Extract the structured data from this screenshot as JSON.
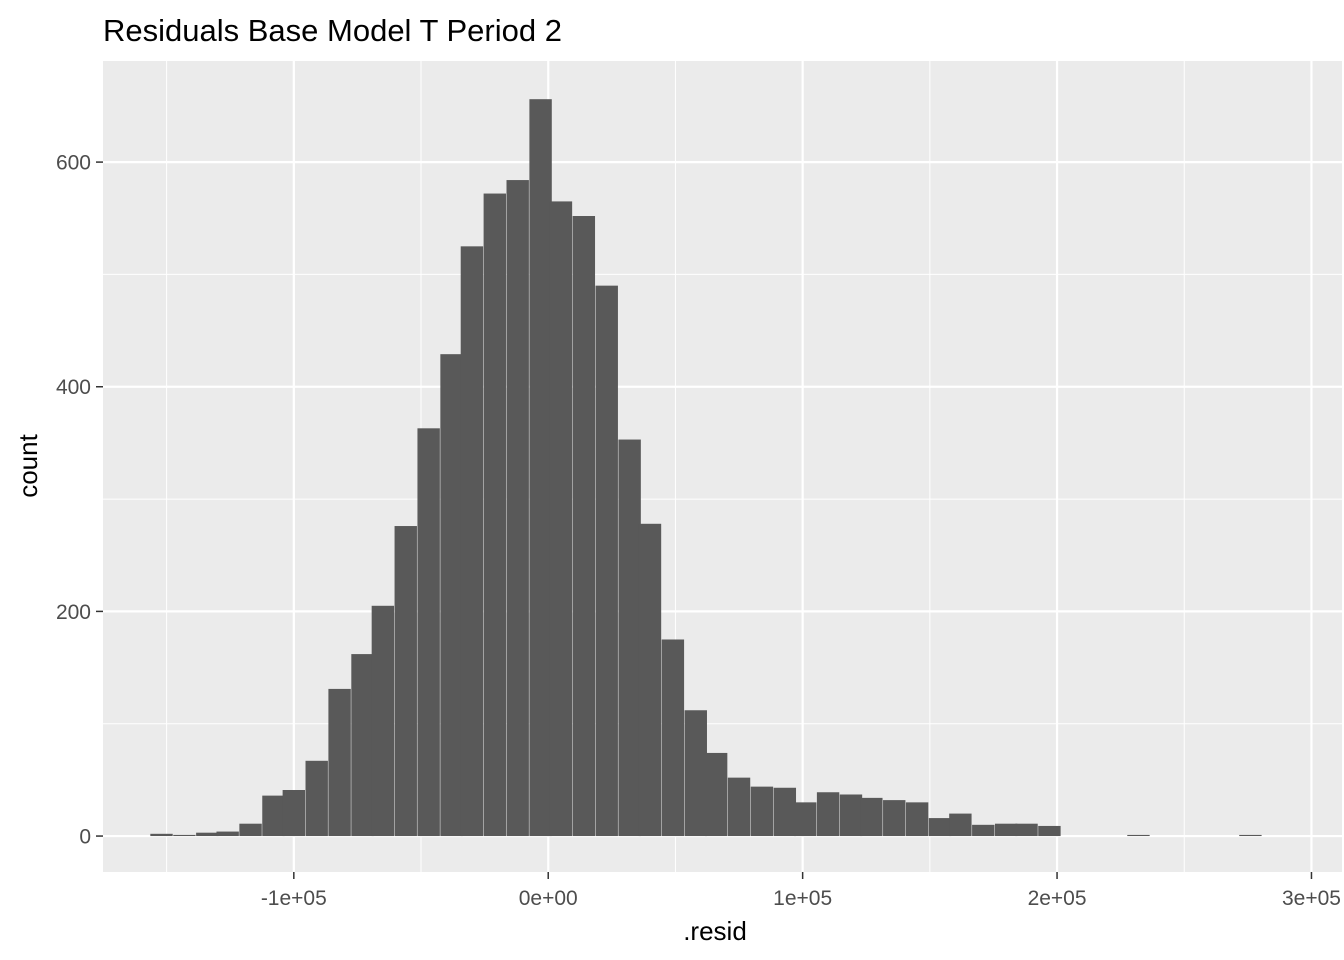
{
  "chart_data": {
    "type": "bar",
    "title": "Residuals Base Model T Period 2",
    "xlabel": ".resid",
    "ylabel": "count",
    "xlim": [
      -175000,
      312000
    ],
    "ylim": [
      -32,
      690
    ],
    "grid": true,
    "legend": "none",
    "bin_width": 8800,
    "x_ticks": [
      {
        "value": -100000,
        "label": "-1e+05"
      },
      {
        "value": 0,
        "label": "0e+00"
      },
      {
        "value": 100000,
        "label": "1e+05"
      },
      {
        "value": 200000,
        "label": "2e+05"
      },
      {
        "value": 300000,
        "label": "3e+05"
      }
    ],
    "y_ticks": [
      {
        "value": 0,
        "label": "0"
      },
      {
        "value": 200,
        "label": "200"
      },
      {
        "value": 400,
        "label": "400"
      },
      {
        "value": 600,
        "label": "600"
      }
    ],
    "bins": [
      {
        "x": -152000,
        "count": 2
      },
      {
        "x": -143000,
        "count": 1
      },
      {
        "x": -134000,
        "count": 3
      },
      {
        "x": -126000,
        "count": 4
      },
      {
        "x": -117000,
        "count": 11
      },
      {
        "x": -108000,
        "count": 36
      },
      {
        "x": -100000,
        "count": 41
      },
      {
        "x": -91000,
        "count": 67
      },
      {
        "x": -82000,
        "count": 131
      },
      {
        "x": -73000,
        "count": 162
      },
      {
        "x": -65000,
        "count": 205
      },
      {
        "x": -56000,
        "count": 276
      },
      {
        "x": -47000,
        "count": 363
      },
      {
        "x": -38000,
        "count": 429
      },
      {
        "x": -30000,
        "count": 525
      },
      {
        "x": -21000,
        "count": 572
      },
      {
        "x": -12000,
        "count": 584
      },
      {
        "x": -3000,
        "count": 656
      },
      {
        "x": 5000,
        "count": 565
      },
      {
        "x": 14000,
        "count": 552
      },
      {
        "x": 23000,
        "count": 490
      },
      {
        "x": 32000,
        "count": 353
      },
      {
        "x": 40000,
        "count": 278
      },
      {
        "x": 49000,
        "count": 175
      },
      {
        "x": 58000,
        "count": 112
      },
      {
        "x": 66000,
        "count": 74
      },
      {
        "x": 75000,
        "count": 52
      },
      {
        "x": 84000,
        "count": 44
      },
      {
        "x": 93000,
        "count": 43
      },
      {
        "x": 101000,
        "count": 30
      },
      {
        "x": 110000,
        "count": 39
      },
      {
        "x": 119000,
        "count": 37
      },
      {
        "x": 127000,
        "count": 34
      },
      {
        "x": 136000,
        "count": 32
      },
      {
        "x": 145000,
        "count": 30
      },
      {
        "x": 154000,
        "count": 16
      },
      {
        "x": 162000,
        "count": 20
      },
      {
        "x": 171000,
        "count": 10
      },
      {
        "x": 180000,
        "count": 11
      },
      {
        "x": 188000,
        "count": 11
      },
      {
        "x": 197000,
        "count": 9
      },
      {
        "x": 206000,
        "count": 0
      },
      {
        "x": 215000,
        "count": 0
      },
      {
        "x": 223000,
        "count": 0
      },
      {
        "x": 232000,
        "count": 1
      },
      {
        "x": 241000,
        "count": 0
      },
      {
        "x": 249000,
        "count": 0
      },
      {
        "x": 258000,
        "count": 0
      },
      {
        "x": 267000,
        "count": 0
      },
      {
        "x": 276000,
        "count": 1
      }
    ],
    "colors": {
      "panel_background": "#ebebeb",
      "grid_major": "#ffffff",
      "bar_fill": "#595959",
      "tick_text": "#4d4d4d",
      "tick_mark": "#333333"
    }
  }
}
